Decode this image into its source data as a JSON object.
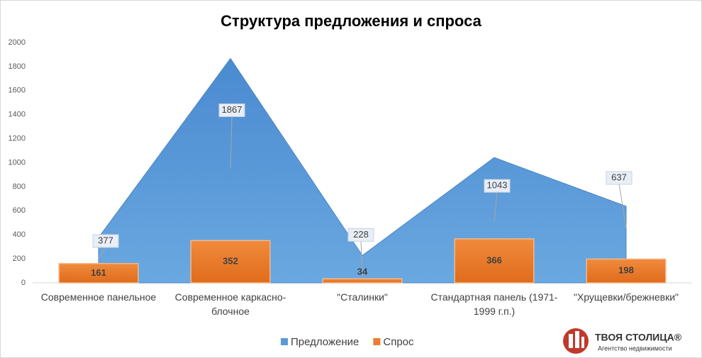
{
  "chart_data": {
    "type": "area-bar",
    "title": "Структура предложения и спроса",
    "categories": [
      "Современное панельное",
      "Современное каркасно-блочное",
      "\"Сталинки\"",
      "Стандартная панель (1971-1999 г.п.)",
      "\"Хрущевки/брежневки\""
    ],
    "series": [
      {
        "name": "Предложение",
        "type": "area",
        "color": "#5b9bd5",
        "values": [
          377,
          1867,
          228,
          1043,
          637
        ]
      },
      {
        "name": "Спрос",
        "type": "bar",
        "color": "#ed7d31",
        "values": [
          161,
          352,
          34,
          366,
          198
        ]
      }
    ],
    "ylim": [
      0,
      2000
    ],
    "yticks": [
      0,
      200,
      400,
      600,
      800,
      1000,
      1200,
      1400,
      1600,
      1800,
      2000
    ],
    "legend": "bottom"
  },
  "logo": {
    "name": "ТВОЯ СТОЛИЦА®",
    "tagline": "Агентство недвижимости"
  }
}
